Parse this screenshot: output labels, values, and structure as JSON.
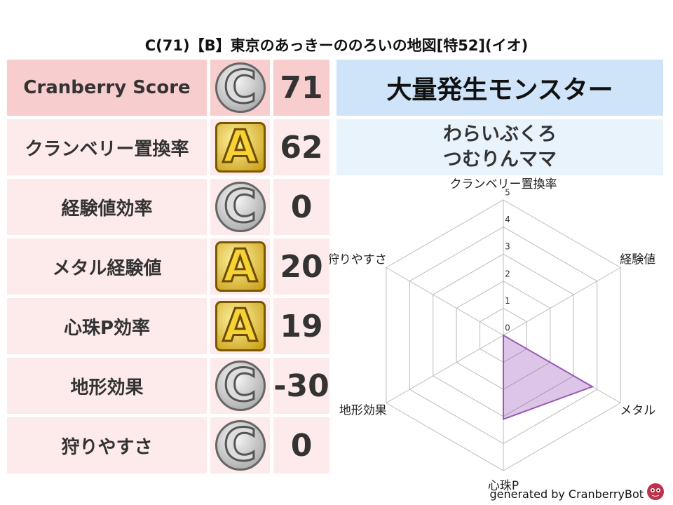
{
  "title": "C(71)【B】東京のあっきーののろいの地図[特52](イオ)",
  "score_table": {
    "header": {
      "label": "Cranberry Score",
      "grade": "C",
      "score": 71
    },
    "rows": [
      {
        "label": "クランベリー置換率",
        "grade": "A",
        "score": 62
      },
      {
        "label": "経験値効率",
        "grade": "C",
        "score": 0
      },
      {
        "label": "メタル経験値",
        "grade": "A",
        "score": 20
      },
      {
        "label": "心珠P効率",
        "grade": "A",
        "score": 19
      },
      {
        "label": "地形効果",
        "grade": "C",
        "score": -30
      },
      {
        "label": "狩りやすさ",
        "grade": "C",
        "score": 0
      }
    ]
  },
  "monster": {
    "heading": "大量発生モンスター",
    "names": [
      "わらいぶくろ",
      "つむりんママ"
    ]
  },
  "chart_data": {
    "type": "radar",
    "categories": [
      "クランベリー置換率",
      "経験値",
      "メタル",
      "心珠P",
      "地形効果",
      "狩りやすさ"
    ],
    "values": [
      0,
      0,
      3.8,
      3.1,
      0,
      0
    ],
    "color": "#9b59b6",
    "rlim": [
      0,
      5
    ],
    "rticks": [
      0,
      1,
      2,
      3,
      4,
      5
    ]
  },
  "footer": "generated by CranberryBot"
}
